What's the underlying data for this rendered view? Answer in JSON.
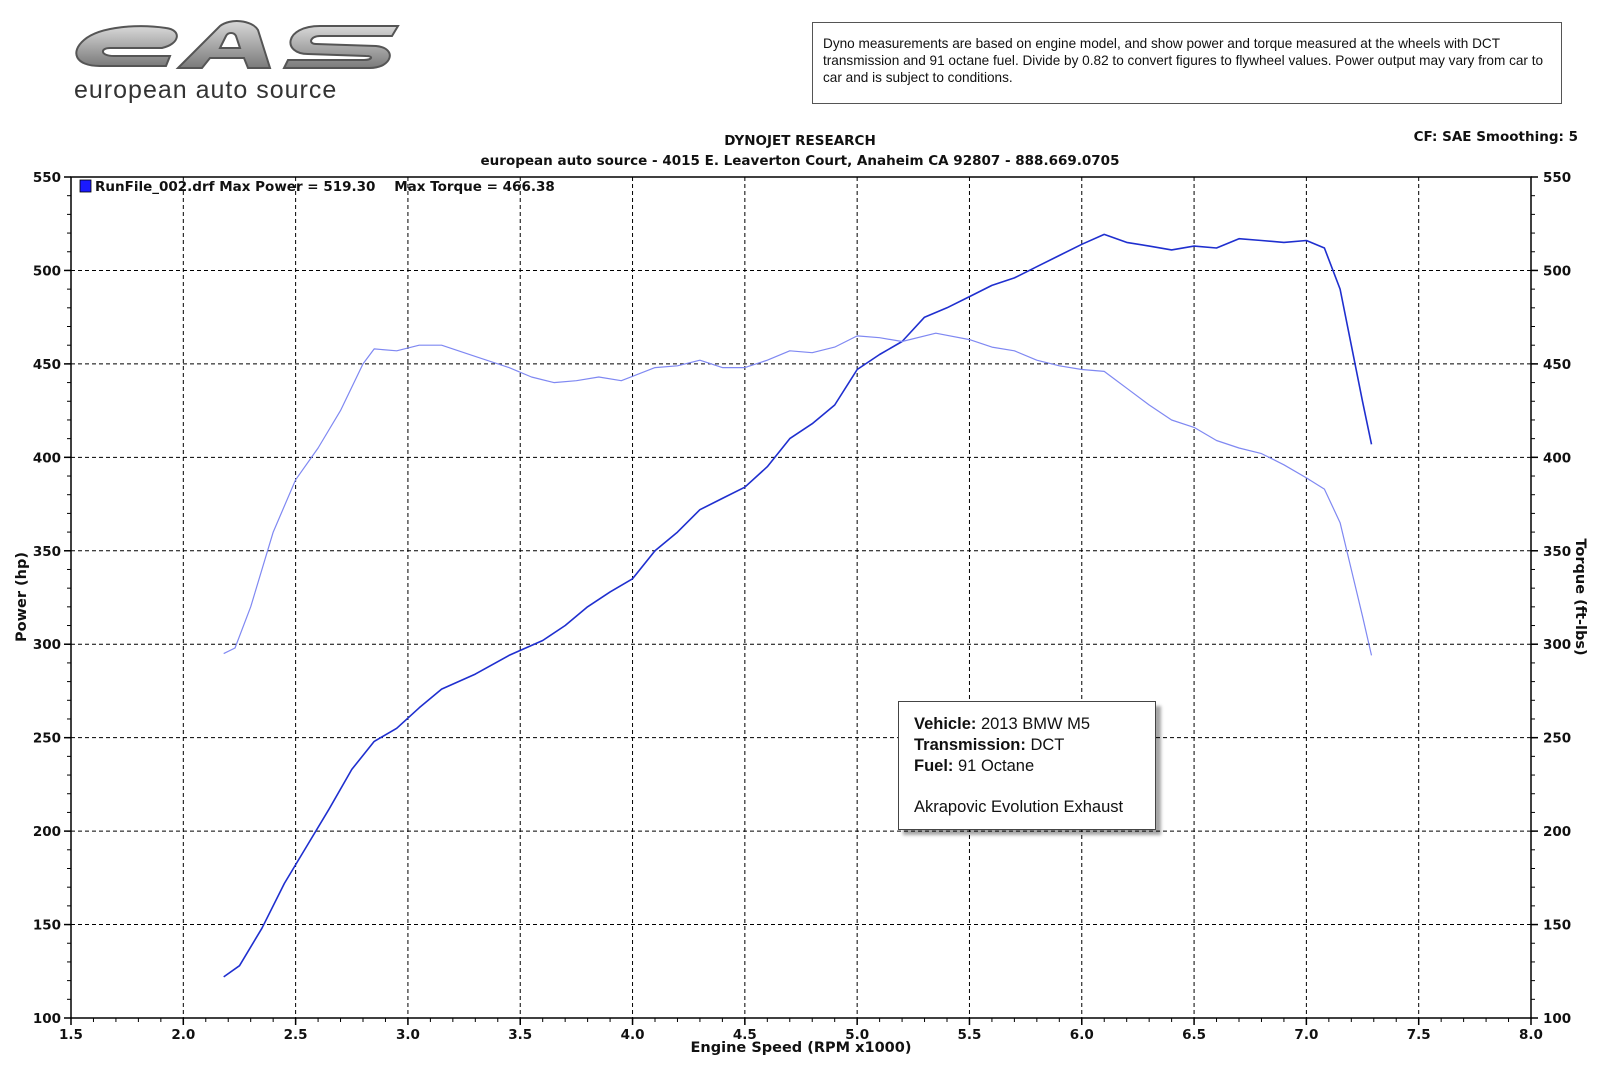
{
  "brand": {
    "name": "european auto source",
    "logo_letters": "eAS"
  },
  "note": "Dyno measurements are based on engine model, and show power and torque measured at the wheels with DCT transmission and 91 octane fuel. Divide by 0.82 to convert figures to flywheel values. Power output may vary from car to car and is subject to conditions.",
  "header": {
    "title": "DYNOJET RESEARCH",
    "subtitle": "european auto source - 4015 E. Leaverton Court, Anaheim CA 92807 - 888.669.0705",
    "settings": "CF: SAE  Smoothing: 5"
  },
  "legend": {
    "text": "RunFile_002.drf Max Power = 519.30    Max Torque = 466.38",
    "swatch_color": "#1a1aff"
  },
  "vehicle_info": {
    "vehicle_label": "Vehicle:",
    "vehicle_value": " 2013 BMW M5",
    "transmission_label": "Transmission:",
    "transmission_value": " DCT",
    "fuel_label": "Fuel:",
    "fuel_value": " 91 Octane",
    "extra": "Akrapovic Evolution Exhaust"
  },
  "chart_data": {
    "type": "line",
    "xlabel": "Engine Speed (RPM x1000)",
    "ylabel_left": "Power (hp)",
    "ylabel_right": "Torque (ft-lbs)",
    "xlim": [
      1.5,
      8.0
    ],
    "ylim": [
      100,
      550
    ],
    "x_ticks": [
      "1.5",
      "2.0",
      "2.5",
      "3.0",
      "3.5",
      "4.0",
      "4.5",
      "5.0",
      "5.5",
      "6.0",
      "6.5",
      "7.0",
      "7.5",
      "8.0"
    ],
    "y_ticks": [
      "100",
      "150",
      "200",
      "250",
      "300",
      "350",
      "400",
      "450",
      "500",
      "550"
    ],
    "grid": true,
    "series": [
      {
        "role": "power",
        "color": "#1f2fcf",
        "points": [
          [
            2.18,
            122
          ],
          [
            2.25,
            128
          ],
          [
            2.35,
            148
          ],
          [
            2.45,
            172
          ],
          [
            2.55,
            192
          ],
          [
            2.65,
            212
          ],
          [
            2.75,
            233
          ],
          [
            2.85,
            248
          ],
          [
            2.95,
            255
          ],
          [
            3.05,
            266
          ],
          [
            3.15,
            276
          ],
          [
            3.3,
            284
          ],
          [
            3.45,
            294
          ],
          [
            3.6,
            302
          ],
          [
            3.7,
            310
          ],
          [
            3.8,
            320
          ],
          [
            3.9,
            328
          ],
          [
            4.0,
            335
          ],
          [
            4.1,
            350
          ],
          [
            4.2,
            360
          ],
          [
            4.3,
            372
          ],
          [
            4.4,
            378
          ],
          [
            4.5,
            384
          ],
          [
            4.6,
            395
          ],
          [
            4.7,
            410
          ],
          [
            4.8,
            418
          ],
          [
            4.9,
            428
          ],
          [
            5.0,
            447
          ],
          [
            5.1,
            455
          ],
          [
            5.2,
            462
          ],
          [
            5.3,
            475
          ],
          [
            5.4,
            480
          ],
          [
            5.5,
            486
          ],
          [
            5.6,
            492
          ],
          [
            5.7,
            496
          ],
          [
            5.8,
            502
          ],
          [
            5.9,
            508
          ],
          [
            6.0,
            514
          ],
          [
            6.1,
            519.3
          ],
          [
            6.2,
            515
          ],
          [
            6.3,
            513
          ],
          [
            6.4,
            511
          ],
          [
            6.5,
            513
          ],
          [
            6.6,
            512
          ],
          [
            6.7,
            517
          ],
          [
            6.8,
            516
          ],
          [
            6.9,
            515
          ],
          [
            7.0,
            516
          ],
          [
            7.08,
            512
          ],
          [
            7.15,
            490
          ],
          [
            7.2,
            460
          ],
          [
            7.25,
            430
          ],
          [
            7.29,
            407
          ]
        ]
      },
      {
        "role": "torque",
        "color": "#7f88f2",
        "points": [
          [
            2.18,
            295
          ],
          [
            2.23,
            298
          ],
          [
            2.3,
            320
          ],
          [
            2.4,
            360
          ],
          [
            2.5,
            388
          ],
          [
            2.6,
            405
          ],
          [
            2.7,
            425
          ],
          [
            2.8,
            450
          ],
          [
            2.85,
            458
          ],
          [
            2.95,
            457
          ],
          [
            3.05,
            460
          ],
          [
            3.15,
            460
          ],
          [
            3.3,
            454
          ],
          [
            3.45,
            448
          ],
          [
            3.55,
            443
          ],
          [
            3.65,
            440
          ],
          [
            3.75,
            441
          ],
          [
            3.85,
            443
          ],
          [
            3.95,
            441
          ],
          [
            4.1,
            448
          ],
          [
            4.2,
            449
          ],
          [
            4.3,
            452
          ],
          [
            4.4,
            448
          ],
          [
            4.5,
            448
          ],
          [
            4.6,
            452
          ],
          [
            4.7,
            457
          ],
          [
            4.8,
            456
          ],
          [
            4.9,
            459
          ],
          [
            5.0,
            465
          ],
          [
            5.1,
            464
          ],
          [
            5.2,
            462
          ],
          [
            5.35,
            466.4
          ],
          [
            5.5,
            463
          ],
          [
            5.6,
            459
          ],
          [
            5.7,
            457
          ],
          [
            5.8,
            452
          ],
          [
            5.9,
            449
          ],
          [
            6.0,
            447
          ],
          [
            6.1,
            446
          ],
          [
            6.2,
            437
          ],
          [
            6.3,
            428
          ],
          [
            6.4,
            420
          ],
          [
            6.5,
            416
          ],
          [
            6.6,
            409
          ],
          [
            6.7,
            405
          ],
          [
            6.8,
            402
          ],
          [
            6.9,
            396
          ],
          [
            7.0,
            389
          ],
          [
            7.08,
            383
          ],
          [
            7.15,
            365
          ],
          [
            7.2,
            340
          ],
          [
            7.25,
            315
          ],
          [
            7.29,
            294
          ]
        ]
      }
    ]
  }
}
